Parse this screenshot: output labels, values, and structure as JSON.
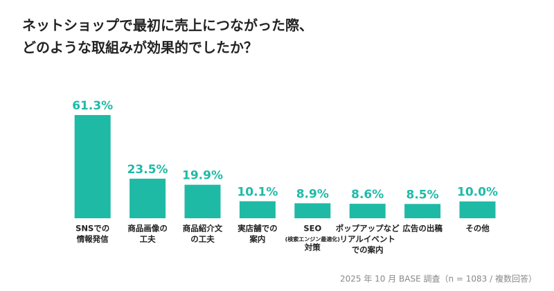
{
  "chart_data": {
    "type": "bar",
    "title": [
      "ネットショップで最初に売上につながった際、",
      "どのような取組みが効果的でしたか？"
    ],
    "categories": [
      [
        "SNSでの",
        "情報発信"
      ],
      [
        "商品画像の",
        "工夫"
      ],
      [
        "商品紹介文",
        "の工夫"
      ],
      [
        "実店舗での",
        "案内"
      ],
      [
        "SEO",
        "(検索エンジン最適化)",
        "対策"
      ],
      [
        "ポップアップなど",
        "リアルイベント",
        "での案内"
      ],
      [
        "広告の出稿"
      ],
      [
        "その他"
      ]
    ],
    "values": [
      61.3,
      23.5,
      19.9,
      10.1,
      8.9,
      8.6,
      8.5,
      10.0
    ],
    "value_labels": [
      "61.3%",
      "23.5%",
      "19.9%",
      "10.1%",
      "8.9%",
      "8.6%",
      "8.5%",
      "10.0%"
    ],
    "color": "#1fbaa6",
    "note": "2025 年 10 月 BASE 調査（n = 1083 / 複数回答）"
  }
}
